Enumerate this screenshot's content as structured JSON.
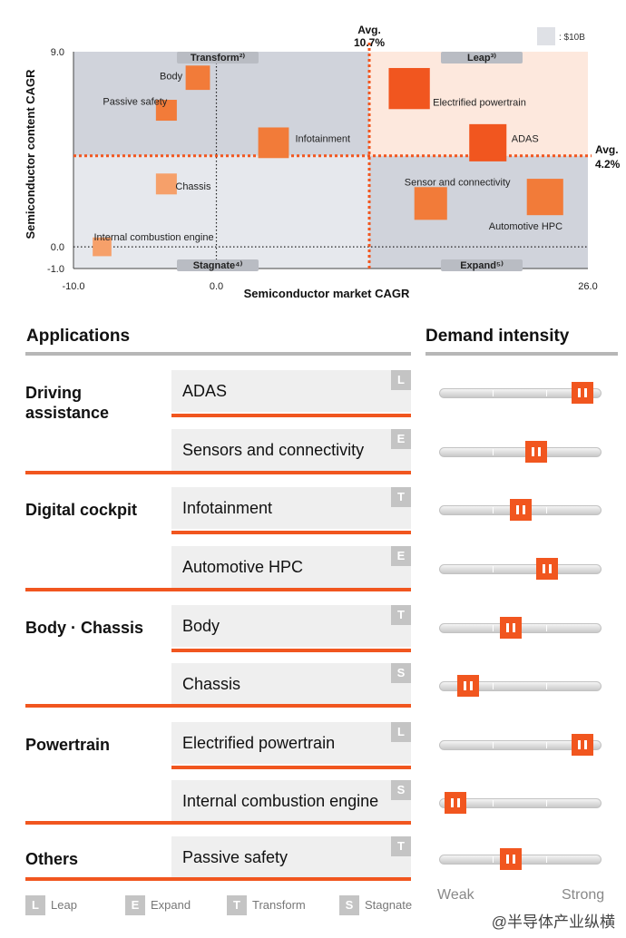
{
  "chart_data": {
    "type": "scatter",
    "xlabel": "Semiconductor market CAGR",
    "ylabel": "Semiconductor content CAGR",
    "xlim": [
      -10.0,
      26.0
    ],
    "ylim": [
      -1.0,
      9.0
    ],
    "x_ticks": [
      "-10.0",
      "0.0",
      "26.0"
    ],
    "y_ticks": [
      "9.0",
      "0.0",
      "-1.0"
    ],
    "avg_x": 10.7,
    "avg_y": 4.2,
    "avg_x_label": "Avg.\n10.7%",
    "avg_y_label": "Avg.\n4.2%",
    "size_legend": ": $10B",
    "quadrants": [
      "Transform²⁾",
      "Leap³⁾",
      "Stagnate⁴⁾",
      "Expand⁵⁾"
    ],
    "points": [
      {
        "label": "Body",
        "x": -1.3,
        "y": 7.8,
        "size": 0.5,
        "color": "#f27b39"
      },
      {
        "label": "Passive safety",
        "x": -3.5,
        "y": 6.3,
        "size": 0.3,
        "color": "#f27b39"
      },
      {
        "label": "Infotainment",
        "x": 4.0,
        "y": 4.8,
        "size": 1.0,
        "color": "#f27b39"
      },
      {
        "label": "Chassis",
        "x": -3.5,
        "y": 2.9,
        "size": 0.3,
        "color": "#f6a06a"
      },
      {
        "label": "Internal combustion engine",
        "x": -8.0,
        "y": 0.0,
        "size": 0.2,
        "color": "#f6a06a"
      },
      {
        "label": "Electrified powertrain",
        "x": 13.5,
        "y": 7.3,
        "size": 2.2,
        "color": "#f1561f"
      },
      {
        "label": "ADAS",
        "x": 19.0,
        "y": 4.8,
        "size": 1.7,
        "color": "#f1561f"
      },
      {
        "label": "Sensor and connectivity",
        "x": 15.0,
        "y": 2.0,
        "size": 1.2,
        "color": "#f27b39"
      },
      {
        "label": "Automotive HPC",
        "x": 23.0,
        "y": 2.3,
        "size": 1.6,
        "color": "#f27b39"
      }
    ]
  },
  "applications": {
    "heading": "Applications",
    "demand_heading": "Demand intensity",
    "weak_label": "Weak",
    "strong_label": "Strong",
    "groups": [
      {
        "name": "Driving\nassistance",
        "items": [
          {
            "label": "ADAS",
            "tag": "L",
            "demand": 0.94
          },
          {
            "label": "Sensors and connectivity",
            "tag": "E",
            "demand": 0.61
          }
        ]
      },
      {
        "name": "Digital cockpit",
        "items": [
          {
            "label": "Infotainment",
            "tag": "T",
            "demand": 0.5
          },
          {
            "label": "Automotive HPC",
            "tag": "E",
            "demand": 0.69
          }
        ]
      },
      {
        "name": "Body · Chassis",
        "items": [
          {
            "label": "Body",
            "tag": "T",
            "demand": 0.43
          },
          {
            "label": "Chassis",
            "tag": "S",
            "demand": 0.13
          }
        ]
      },
      {
        "name": "Powertrain",
        "items": [
          {
            "label": "Electrified powertrain",
            "tag": "L",
            "demand": 0.94
          },
          {
            "label": "Internal combustion engine",
            "tag": "S",
            "demand": 0.04
          }
        ]
      },
      {
        "name": "Others",
        "items": [
          {
            "label": "Passive safety",
            "tag": "T",
            "demand": 0.43
          }
        ]
      }
    ],
    "legend": [
      {
        "tag": "L",
        "label": "Leap"
      },
      {
        "tag": "E",
        "label": "Expand"
      },
      {
        "tag": "T",
        "label": "Transform"
      },
      {
        "tag": "S",
        "label": "Stagnate"
      }
    ]
  },
  "watermark": "@半导体产业纵横"
}
